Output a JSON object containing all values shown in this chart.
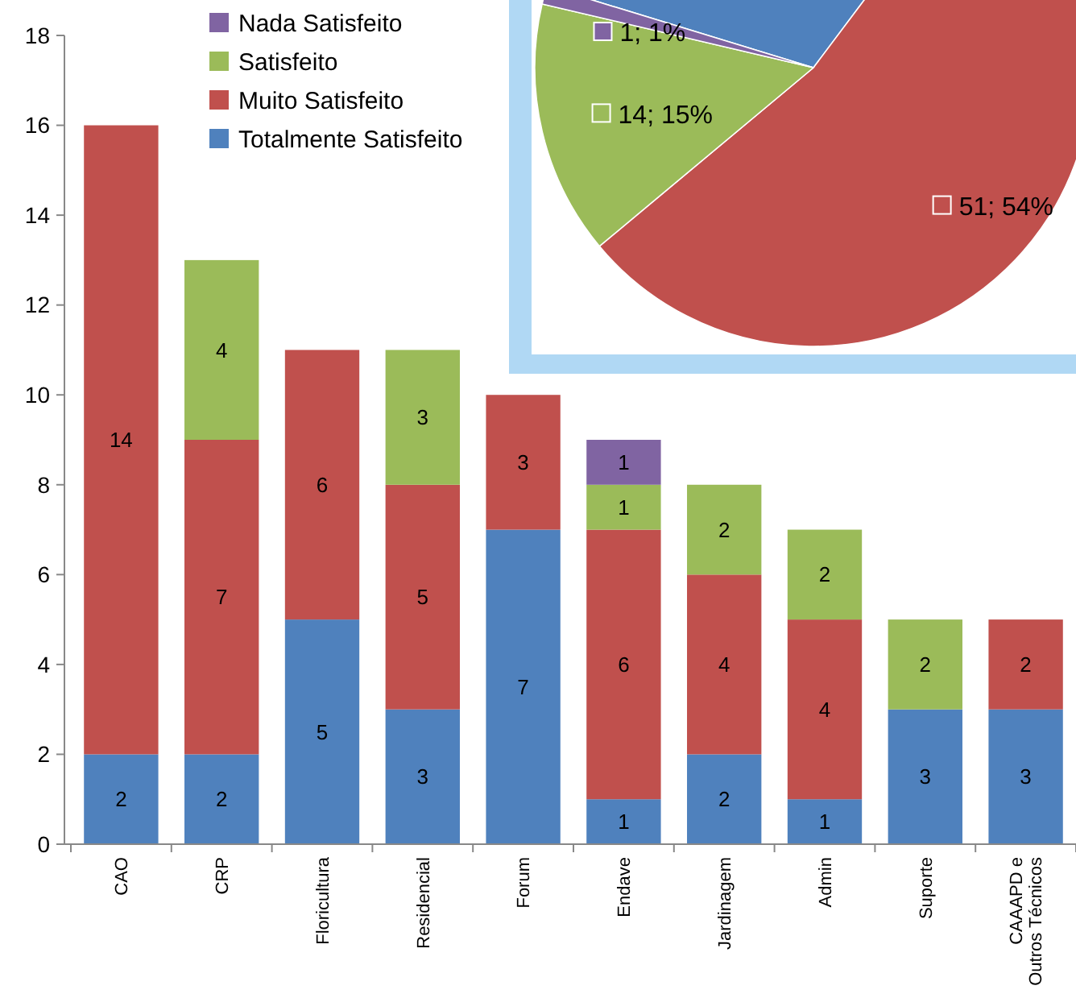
{
  "chart_data": [
    {
      "type": "bar",
      "stacked": true,
      "categories": [
        "CAO",
        "CRP",
        "Floricultura",
        "Residencial",
        "Forum",
        "Endave",
        "Jardinagem",
        "Admin",
        "Suporte",
        "CAAAPD e Outros Técnicos"
      ],
      "series": [
        {
          "name": "Totalmente Satisfeito",
          "color": "#4f81bd",
          "values": [
            2,
            2,
            5,
            3,
            7,
            1,
            2,
            1,
            3,
            3
          ]
        },
        {
          "name": "Muito Satisfeito",
          "color": "#c0504d",
          "values": [
            14,
            7,
            6,
            5,
            3,
            6,
            4,
            4,
            null,
            2
          ]
        },
        {
          "name": "Satisfeito",
          "color": "#9bbb59",
          "values": [
            null,
            4,
            null,
            3,
            null,
            1,
            2,
            2,
            2,
            null
          ]
        },
        {
          "name": "Nada Satisfeito",
          "color": "#8064a2",
          "values": [
            null,
            null,
            null,
            null,
            null,
            1,
            null,
            null,
            null,
            null
          ]
        }
      ],
      "ylim": [
        0,
        18
      ],
      "yticks": [
        0,
        2,
        4,
        6,
        8,
        10,
        12,
        14,
        16,
        18
      ],
      "grid": false,
      "legend": "top left",
      "data_labels": true
    },
    {
      "type": "pie",
      "categories": [
        null,
        null,
        null,
        null
      ],
      "values": [
        29,
        51,
        14,
        1
      ],
      "colors": [
        "#4f81bd",
        "#c0504d",
        "#9bbb59",
        "#8064a2"
      ],
      "value_labels": [
        null,
        "51; 54%",
        "14; 15%",
        "1; 1%"
      ]
    }
  ]
}
